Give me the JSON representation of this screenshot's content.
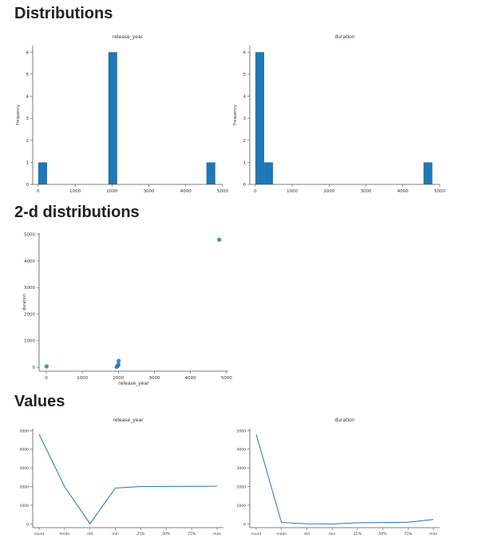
{
  "sections": {
    "distributions": "Distributions",
    "two_d": "2-d distributions",
    "values": "Values"
  },
  "colors": {
    "accent": "#1f77b4",
    "axis": "#555555",
    "text": "#212121"
  },
  "chart_data": [
    {
      "id": "hist-release-year",
      "type": "bar",
      "title": "release_year",
      "xlabel": "",
      "ylabel": "Frequency",
      "bins": [
        {
          "x0": 0,
          "x1": 240,
          "count": 1
        },
        {
          "x0": 1900,
          "x1": 2140,
          "count": 6
        },
        {
          "x0": 4560,
          "x1": 4800,
          "count": 1
        }
      ],
      "xlim": [
        -150,
        5000
      ],
      "ylim": [
        0,
        6.3
      ],
      "xticks": [
        0,
        1000,
        2000,
        3000,
        4000,
        5000
      ],
      "yticks": [
        0,
        1,
        2,
        3,
        4,
        5,
        6
      ]
    },
    {
      "id": "hist-duration",
      "type": "bar",
      "title": "duration",
      "xlabel": "",
      "ylabel": "Frequency",
      "bins": [
        {
          "x0": 0,
          "x1": 240,
          "count": 6
        },
        {
          "x0": 240,
          "x1": 480,
          "count": 1
        },
        {
          "x0": 4560,
          "x1": 4800,
          "count": 1
        }
      ],
      "xlim": [
        -150,
        5000
      ],
      "ylim": [
        0,
        6.3
      ],
      "xticks": [
        0,
        1000,
        2000,
        3000,
        4000,
        5000
      ],
      "yticks": [
        0,
        1,
        2,
        3,
        4,
        5,
        6
      ]
    },
    {
      "id": "scatter-2d",
      "type": "scatter",
      "title": "",
      "xlabel": "release_year",
      "ylabel": "duration",
      "points": [
        {
          "x": 8,
          "y": 30
        },
        {
          "x": 1950,
          "y": 10
        },
        {
          "x": 1990,
          "y": 60
        },
        {
          "x": 2000,
          "y": 110
        },
        {
          "x": 2010,
          "y": 240
        },
        {
          "x": 4800,
          "y": 4800
        }
      ],
      "xlim": [
        -200,
        5050
      ],
      "ylim": [
        -150,
        5050
      ],
      "xticks": [
        0,
        1000,
        2000,
        3000,
        4000,
        5000
      ],
      "yticks": [
        0,
        1000,
        2000,
        3000,
        4000,
        5000
      ]
    },
    {
      "id": "line-release-year",
      "type": "line",
      "title": "release_year",
      "xlabel": "",
      "ylabel": "",
      "categories": [
        "count",
        "mean",
        "std",
        "min",
        "25%",
        "50%",
        "75%",
        "max"
      ],
      "values": [
        4800,
        2000,
        10,
        1920,
        2000,
        2005,
        2010,
        2015
      ],
      "ylim": [
        -200,
        5100
      ],
      "yticks": [
        0,
        1000,
        2000,
        3000,
        4000,
        5000
      ]
    },
    {
      "id": "line-duration",
      "type": "line",
      "title": "duration",
      "xlabel": "",
      "ylabel": "",
      "categories": [
        "count",
        "mean",
        "std",
        "min",
        "25%",
        "50%",
        "75%",
        "max"
      ],
      "values": [
        4800,
        80,
        10,
        0,
        60,
        70,
        90,
        240
      ],
      "ylim": [
        -200,
        5100
      ],
      "yticks": [
        0,
        1000,
        2000,
        3000,
        4000,
        5000
      ]
    }
  ]
}
